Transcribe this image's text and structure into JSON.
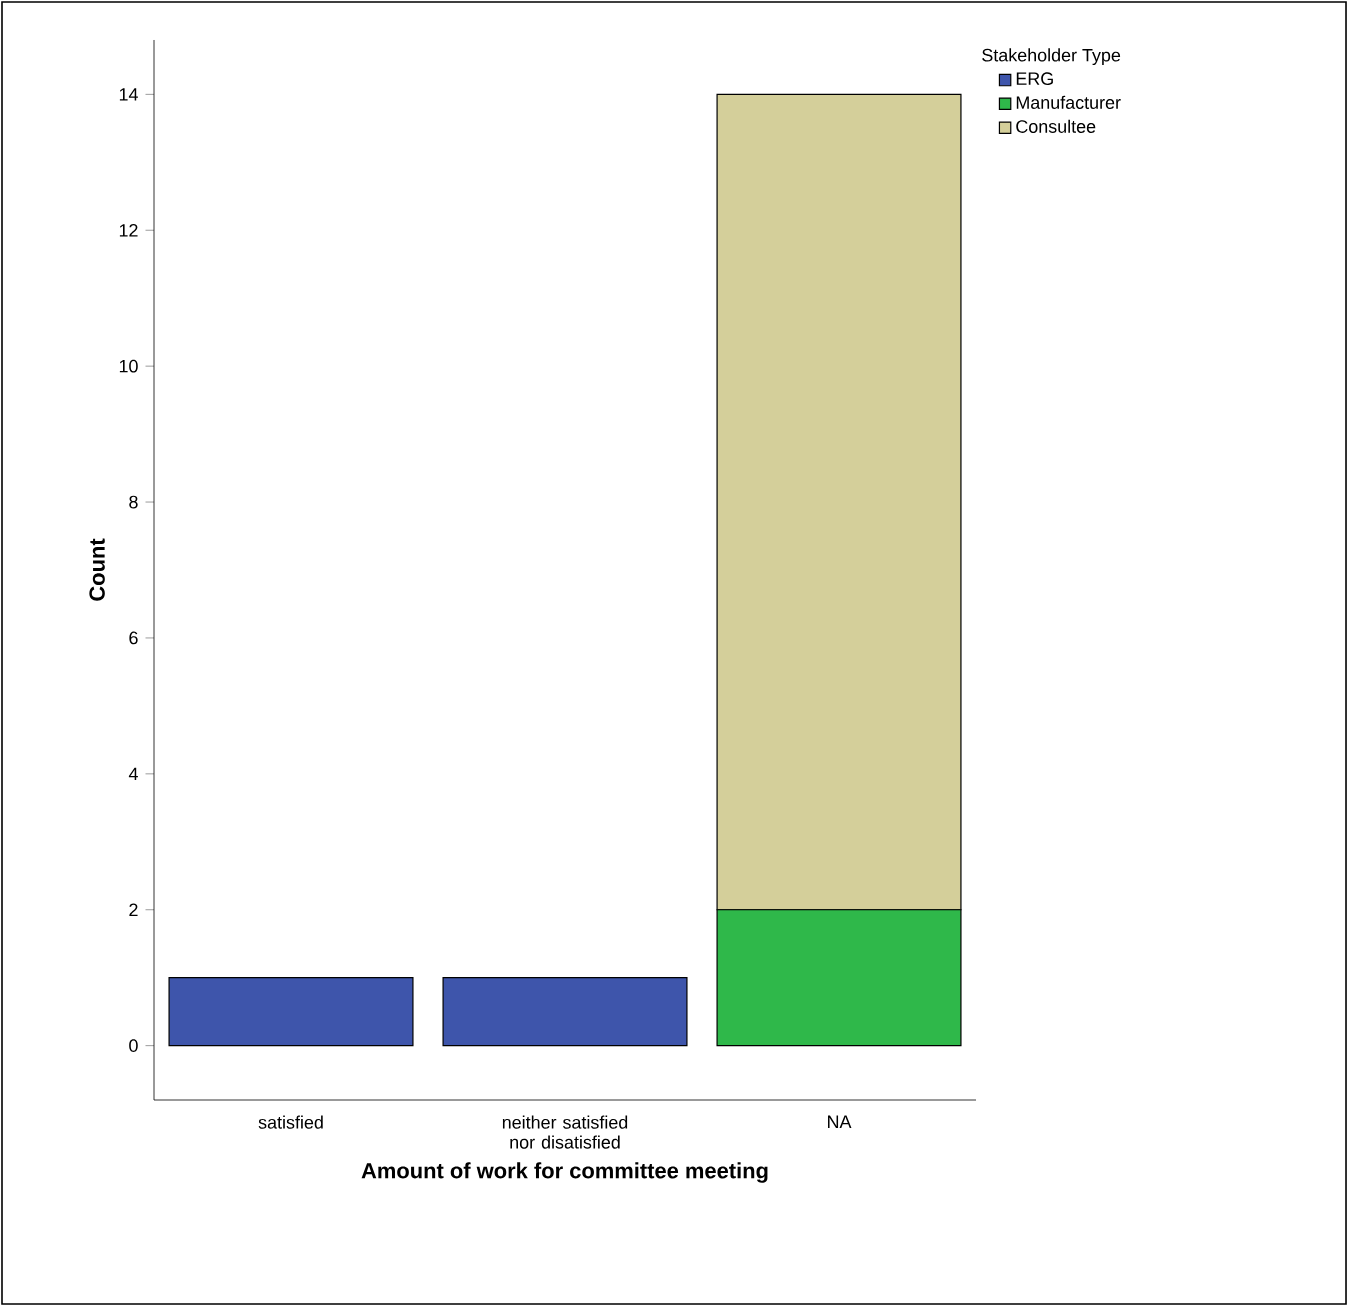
{
  "chart_data": {
    "type": "bar",
    "stacked": true,
    "xlabel": "Amount of work for committee meeting",
    "ylabel": "Count",
    "legend_title": "Stakeholder Type",
    "legend": "top right",
    "categories": [
      "satisfied",
      "neither satisfied nor disatisfied",
      "NA"
    ],
    "series": [
      {
        "name": "ERG",
        "color": "#3e55ab",
        "values": [
          1,
          1,
          null
        ]
      },
      {
        "name": "Manufacturer",
        "color": "#2fb84a",
        "values": [
          null,
          null,
          2
        ]
      },
      {
        "name": "Consultee",
        "color": "#d4cf9a",
        "values": [
          null,
          null,
          12
        ]
      }
    ],
    "ylim": [
      -0.8,
      14.8
    ],
    "yticks": [
      0,
      2,
      4,
      6,
      8,
      10,
      12,
      14
    ]
  }
}
